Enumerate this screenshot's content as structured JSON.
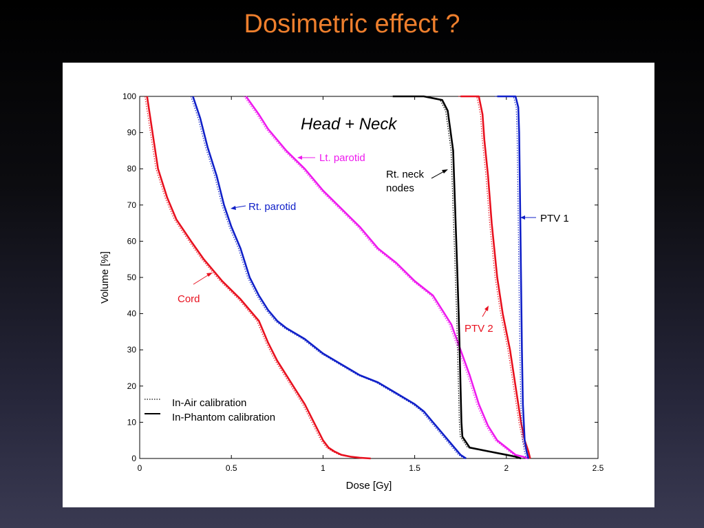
{
  "slide": {
    "title": "Dosimetric effect ?"
  },
  "chart_data": {
    "type": "line",
    "title": "Head + Neck",
    "xlabel": "Dose [Gy]",
    "ylabel": "Volume [%]",
    "xlim": [
      0,
      2.5
    ],
    "ylim": [
      0,
      100
    ],
    "xticks": [
      "0",
      "0.5",
      "1",
      "1.5",
      "2",
      "2.5"
    ],
    "yticks": [
      "0",
      "10",
      "20",
      "30",
      "40",
      "50",
      "60",
      "70",
      "80",
      "90",
      "100"
    ],
    "grid": false,
    "legend": {
      "position": "bottom-left",
      "entries": [
        {
          "label": "In-Air calibration",
          "style": "dotted"
        },
        {
          "label": "In-Phantom calibration",
          "style": "solid"
        }
      ]
    },
    "colors": {
      "cord": "#e8101e",
      "rt_parotid": "#1020c8",
      "lt_parotid": "#ee1aee",
      "neck_nodes": "#000000",
      "ptv2": "#e8101e",
      "ptv1": "#1020c8"
    },
    "annotations": [
      {
        "text": "Lt. parotid",
        "color": "#ee1aee"
      },
      {
        "text": "Rt. parotid",
        "color": "#1020c8"
      },
      {
        "text": "Cord",
        "color": "#e8101e"
      },
      {
        "text": "Rt. neck",
        "color": "#000000"
      },
      {
        "text": "nodes",
        "color": "#000000"
      },
      {
        "text": "PTV 1",
        "color": "#000000"
      },
      {
        "text": "PTV 2",
        "color": "#e8101e"
      }
    ],
    "series": [
      {
        "name": "Cord",
        "color": "#e8101e",
        "x": [
          0.04,
          0.07,
          0.1,
          0.15,
          0.2,
          0.28,
          0.35,
          0.45,
          0.55,
          0.65,
          0.7,
          0.75,
          0.8,
          0.85,
          0.9,
          0.95,
          0.98,
          1.0,
          1.03,
          1.06,
          1.1,
          1.15,
          1.2,
          1.26
        ],
        "y": [
          100,
          90,
          80,
          72,
          66,
          60,
          55,
          49,
          44,
          38,
          32,
          27,
          23,
          19,
          15,
          10,
          7,
          5,
          3,
          2,
          1,
          0.5,
          0.2,
          0
        ]
      },
      {
        "name": "Rt. parotid",
        "color": "#1020c8",
        "x": [
          0.29,
          0.33,
          0.37,
          0.42,
          0.46,
          0.5,
          0.55,
          0.6,
          0.65,
          0.7,
          0.75,
          0.8,
          0.9,
          1.0,
          1.1,
          1.2,
          1.3,
          1.4,
          1.5,
          1.55,
          1.6,
          1.65,
          1.7,
          1.75,
          1.78
        ],
        "y": [
          100,
          94,
          86,
          78,
          70,
          64,
          58,
          50,
          45,
          41,
          38,
          36,
          33,
          29,
          26,
          23,
          21,
          18,
          15,
          13,
          10,
          7,
          4,
          1,
          0
        ]
      },
      {
        "name": "Lt. parotid",
        "color": "#ee1aee",
        "x": [
          0.58,
          0.65,
          0.7,
          0.8,
          0.9,
          1.0,
          1.1,
          1.2,
          1.3,
          1.4,
          1.5,
          1.55,
          1.6,
          1.65,
          1.7,
          1.75,
          1.8,
          1.85,
          1.9,
          1.95,
          2.0,
          2.05,
          2.09,
          2.12
        ],
        "y": [
          100,
          95,
          91,
          85,
          80,
          74,
          69,
          64,
          58,
          54,
          49,
          47,
          45,
          41,
          37,
          30,
          23,
          15,
          9,
          5,
          3,
          1,
          0.5,
          0
        ]
      },
      {
        "name": "Rt. neck nodes",
        "color": "#000000",
        "x": [
          1.38,
          1.55,
          1.65,
          1.68,
          1.71,
          1.72,
          1.73,
          1.74,
          1.745,
          1.75,
          1.755,
          1.76,
          1.8,
          1.9,
          2.0,
          2.05,
          2.08
        ],
        "y": [
          100,
          100,
          99,
          96,
          85,
          70,
          55,
          40,
          30,
          20,
          10,
          6,
          3,
          2,
          1,
          0.5,
          0
        ]
      },
      {
        "name": "PTV 2",
        "color": "#e8101e",
        "x": [
          1.75,
          1.85,
          1.87,
          1.88,
          1.9,
          1.92,
          1.95,
          1.98,
          2.02,
          2.05,
          2.08,
          2.1,
          2.12,
          2.13
        ],
        "y": [
          100,
          100,
          95,
          88,
          78,
          65,
          50,
          40,
          30,
          20,
          10,
          5,
          2,
          0
        ]
      },
      {
        "name": "PTV 1",
        "color": "#1020c8",
        "x": [
          1.95,
          2.05,
          2.065,
          2.07,
          2.075,
          2.08,
          2.085,
          2.09,
          2.1,
          2.11,
          2.12
        ],
        "y": [
          100,
          100,
          97,
          90,
          70,
          50,
          30,
          15,
          5,
          2,
          0
        ]
      }
    ]
  }
}
